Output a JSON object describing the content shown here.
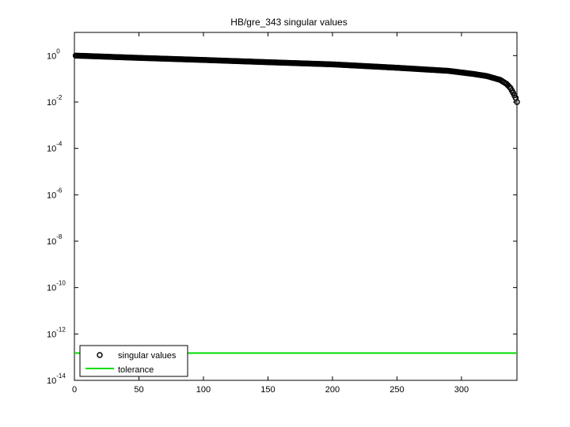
{
  "chart_data": {
    "type": "scatter",
    "title": "HB/gre_343 singular values",
    "xlabel": "",
    "ylabel": "",
    "xlim": [
      0,
      343
    ],
    "ylim_exponent": [
      -14,
      1
    ],
    "y_scale": "log",
    "x_ticks": [
      0,
      50,
      100,
      150,
      200,
      250,
      300
    ],
    "y_tick_exponents": [
      0,
      -2,
      -4,
      -6,
      -8,
      -10,
      -12,
      -14
    ],
    "y_tick_base": "10",
    "grid": false,
    "legend_position": "bottom-left",
    "series": [
      {
        "name": "singular values",
        "marker": "circle",
        "color": "#000000",
        "n": 343,
        "curve_x": [
          1,
          50,
          100,
          150,
          200,
          250,
          290,
          310,
          320,
          330,
          335,
          338,
          340,
          342,
          343
        ],
        "curve_y": [
          1.0,
          0.8,
          0.65,
          0.52,
          0.42,
          0.3,
          0.22,
          0.16,
          0.13,
          0.09,
          0.06,
          0.04,
          0.025,
          0.015,
          0.01
        ]
      },
      {
        "name": "tolerance",
        "marker": "line",
        "color": "#00dd00",
        "value": 1.5e-13
      }
    ]
  }
}
